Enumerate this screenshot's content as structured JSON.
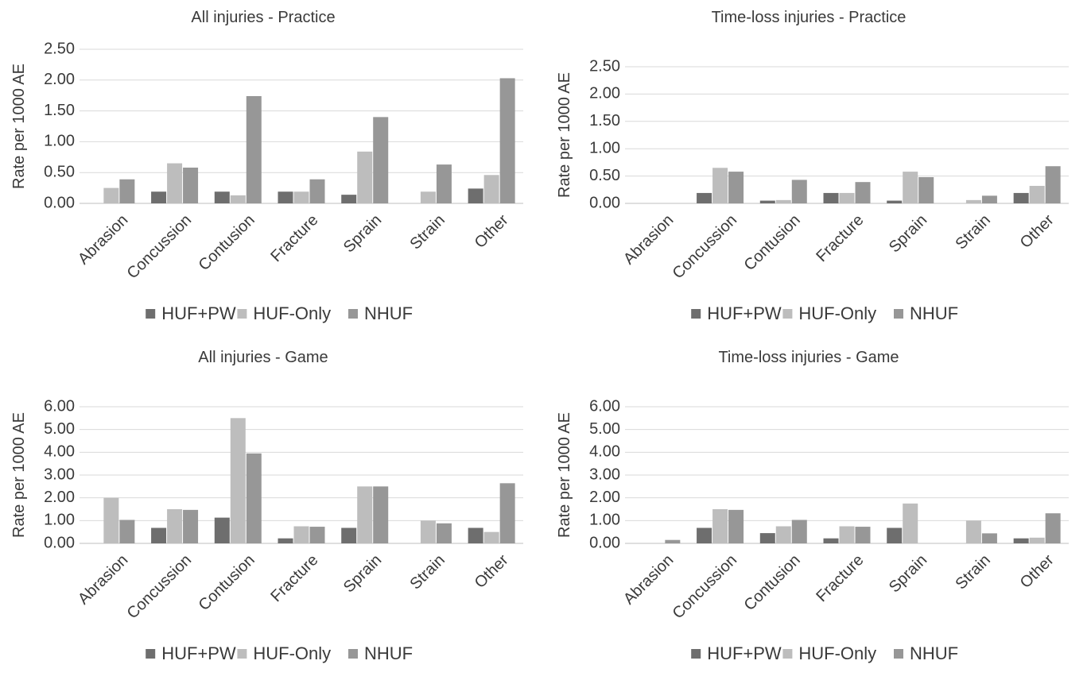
{
  "colors": {
    "HUF+PW": "#6e6e6e",
    "HUF-Only": "#bdbdbd",
    "NHUF": "#979797"
  },
  "chart_data": [
    {
      "type": "bar",
      "title": "All injuries - Practice",
      "ylabel": "Rate per 1000 AE",
      "xlabel": "",
      "categories": [
        "Abrasion",
        "Concussion",
        "Contusion",
        "Fracture",
        "Sprain",
        "Strain",
        "Other"
      ],
      "ylim": [
        0,
        2.5
      ],
      "yticks": [
        "0.00",
        "0.50",
        "1.00",
        "1.50",
        "2.00",
        "2.50"
      ],
      "ytick_values": [
        0,
        0.5,
        1.0,
        1.5,
        2.0,
        2.5
      ],
      "grid": true,
      "legend_position": "bottom",
      "series": [
        {
          "name": "HUF+PW",
          "values": [
            0,
            0.19,
            0.19,
            0.19,
            0.14,
            0,
            0.24
          ]
        },
        {
          "name": "HUF-Only",
          "values": [
            0.25,
            0.65,
            0.13,
            0.19,
            0.84,
            0.19,
            0.46
          ]
        },
        {
          "name": "NHUF",
          "values": [
            0.39,
            0.58,
            1.74,
            0.39,
            1.4,
            0.63,
            2.03
          ]
        }
      ]
    },
    {
      "type": "bar",
      "title": "Time-loss injuries - Practice",
      "ylabel": "Rate per 1000 AE",
      "xlabel": "",
      "categories": [
        "Abrasion",
        "Concussion",
        "Contusion",
        "Fracture",
        "Sprain",
        "Strain",
        "Other"
      ],
      "ylim": [
        0,
        2.5
      ],
      "yticks": [
        "0.00",
        "0.50",
        "1.00",
        "1.50",
        "2.00",
        "2.50"
      ],
      "ytick_values": [
        0,
        0.5,
        1.0,
        1.5,
        2.0,
        2.5
      ],
      "grid": true,
      "legend_position": "bottom",
      "series": [
        {
          "name": "HUF+PW",
          "values": [
            0,
            0.19,
            0.05,
            0.19,
            0.05,
            0,
            0.19
          ]
        },
        {
          "name": "HUF-Only",
          "values": [
            0,
            0.65,
            0.06,
            0.19,
            0.58,
            0.06,
            0.32
          ]
        },
        {
          "name": "NHUF",
          "values": [
            0,
            0.58,
            0.43,
            0.39,
            0.48,
            0.14,
            0.68
          ]
        }
      ]
    },
    {
      "type": "bar",
      "title": "All injuries - Game",
      "ylabel": "Rate per 1000 AE",
      "xlabel": "",
      "categories": [
        "Abrasion",
        "Concussion",
        "Contusion",
        "Fracture",
        "Sprain",
        "Strain",
        "Other"
      ],
      "ylim": [
        0,
        6.0
      ],
      "yticks": [
        "0.00",
        "1.00",
        "2.00",
        "3.00",
        "4.00",
        "5.00",
        "6.00"
      ],
      "ytick_values": [
        0,
        1,
        2,
        3,
        4,
        5,
        6
      ],
      "grid": true,
      "legend_position": "bottom",
      "series": [
        {
          "name": "HUF+PW",
          "values": [
            0,
            0.68,
            1.13,
            0.22,
            0.68,
            0,
            0.68
          ]
        },
        {
          "name": "HUF-Only",
          "values": [
            2.0,
            1.5,
            5.5,
            0.75,
            2.5,
            1.0,
            0.5
          ]
        },
        {
          "name": "NHUF",
          "values": [
            1.03,
            1.47,
            3.95,
            0.73,
            2.5,
            0.88,
            2.64
          ]
        }
      ]
    },
    {
      "type": "bar",
      "title": "Time-loss injuries - Game",
      "ylabel": "Rate per 1000 AE",
      "xlabel": "",
      "categories": [
        "Abrasion",
        "Concussion",
        "Contusion",
        "Fracture",
        "Sprain",
        "Strain",
        "Other"
      ],
      "ylim": [
        0,
        6.0
      ],
      "yticks": [
        "0.00",
        "1.00",
        "2.00",
        "3.00",
        "4.00",
        "5.00",
        "6.00"
      ],
      "ytick_values": [
        0,
        1,
        2,
        3,
        4,
        5,
        6
      ],
      "grid": true,
      "legend_position": "bottom",
      "series": [
        {
          "name": "HUF+PW",
          "values": [
            0,
            0.68,
            0.45,
            0.22,
            0.68,
            0,
            0.22
          ]
        },
        {
          "name": "HUF-Only",
          "values": [
            0,
            1.5,
            0.75,
            0.75,
            1.75,
            1.0,
            0.25
          ]
        },
        {
          "name": "NHUF",
          "values": [
            0.15,
            1.47,
            1.03,
            0.73,
            0,
            0.44,
            1.32
          ]
        }
      ]
    }
  ]
}
